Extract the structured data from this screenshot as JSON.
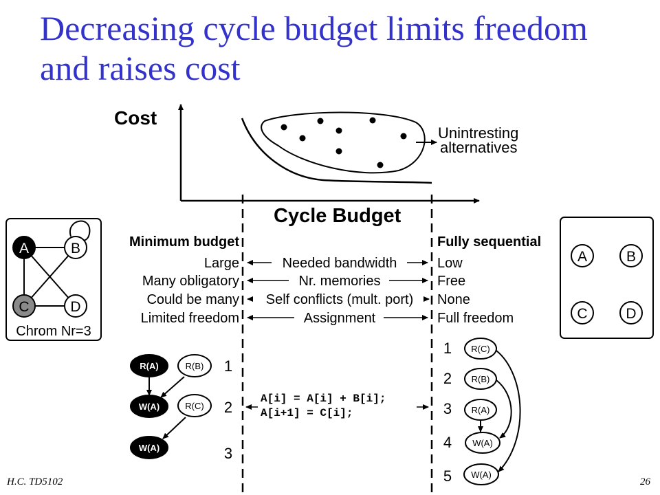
{
  "slide": {
    "title_line1": "Decreasing cycle budget limits freedom",
    "title_line2": "and raises cost",
    "footer_left": "H.C.   TD5102",
    "footer_right": "26",
    "title_color": "#3333cc"
  },
  "plot": {
    "ylabel": "Cost",
    "xlabel": "Cycle Budget",
    "cluster_label_1": "Unintresting",
    "cluster_label_2": "alternatives"
  },
  "conflict_graph": {
    "nodes": [
      "A",
      "B",
      "C",
      "D"
    ],
    "caption": "Chrom Nr=3"
  },
  "sequential_graph": {
    "nodes": [
      "A",
      "B",
      "C",
      "D"
    ]
  },
  "comparison": {
    "left_header": "Minimum budget",
    "right_header": "Fully sequential",
    "rows": [
      {
        "left": "Large",
        "middle": "Needed bandwidth",
        "right": "Low"
      },
      {
        "left": "Many obligatory",
        "middle": "Nr. memories",
        "right": "Free"
      },
      {
        "left": "Could be many",
        "middle": "Self conflicts (mult. port)",
        "right": "None"
      },
      {
        "left": "Limited freedom",
        "middle": "Assignment",
        "right": "Full freedom"
      }
    ]
  },
  "code": {
    "line1": "A[i] = A[i] + B[i];",
    "line2": "A[i+1] = C[i];"
  },
  "left_schedule": {
    "steps": [
      "1",
      "2",
      "3"
    ],
    "nodes": [
      "R(A)",
      "R(B)",
      "W(A)",
      "R(C)",
      "W(A)"
    ]
  },
  "right_schedule": {
    "steps": [
      "1",
      "2",
      "3",
      "4",
      "5"
    ],
    "nodes": [
      "R(C)",
      "R(B)",
      "R(A)",
      "W(A)",
      "W(A)"
    ]
  }
}
